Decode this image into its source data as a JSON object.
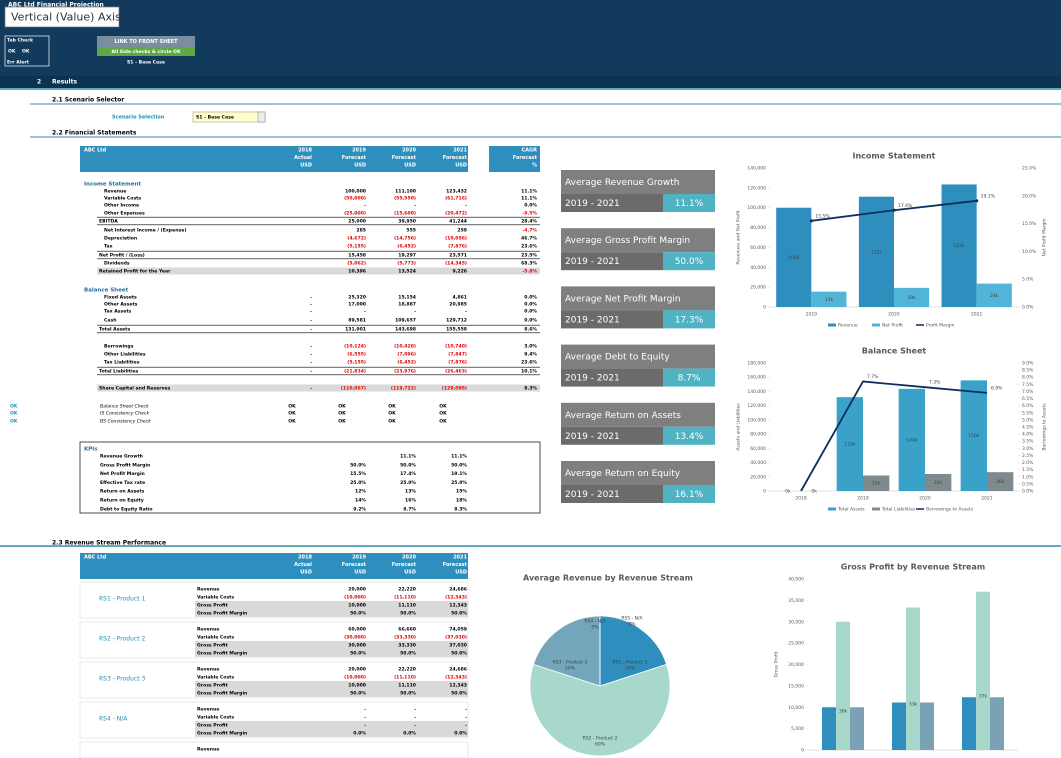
{
  "tooltip": "Vertical (Value) Axis",
  "header": {
    "title": "ABC Ltd Financial Projection",
    "tab_check": "Tab Check",
    "checks": [
      "OK",
      "OK"
    ],
    "err_alert": "Err Alert",
    "link_button": "LINK TO FRONT SHEET",
    "check_note": "All Side checks & circle OK",
    "scenario": "S1 - Base Case"
  },
  "sections": {
    "results_number": "2",
    "results": "Results",
    "scenario_selector": "2.1  Scenario Selector",
    "financial_statements": "2.2  Financial Statements",
    "revenue_streams": "2.3  Revenue Stream Performance"
  },
  "scenario_selection": {
    "label": "Scenario Selection",
    "value": "S1 - Base Case"
  },
  "fin_table": {
    "header": {
      "company": "ABC Ltd",
      "years": [
        {
          "year": "2018",
          "status": "Actual",
          "unit": "USD"
        },
        {
          "year": "2019",
          "status": "Forecast",
          "unit": "USD"
        },
        {
          "year": "2020",
          "status": "Forecast",
          "unit": "USD"
        },
        {
          "year": "2021",
          "status": "Forecast",
          "unit": "USD"
        }
      ],
      "cagr": {
        "name": "CAGR",
        "status": "Forecast",
        "unit": "%"
      }
    },
    "income_statement": {
      "title": "Income Statement",
      "rows": [
        [
          "Revenue",
          "100,000",
          "111,100",
          "123,432",
          "11.1%"
        ],
        [
          "Variable Costs",
          "(50,000)",
          "(55,550)",
          "(61,716)",
          "11.1%"
        ],
        [
          "Other Income",
          "-",
          "-",
          "-",
          "0.0%"
        ],
        [
          "Other Expenses",
          "(25,000)",
          "(15,600)",
          "(20,472)",
          "-9.5%"
        ],
        [
          "EBITDA",
          "25,000",
          "39,950",
          "41,244",
          "28.4%"
        ],
        [
          "Net Interest Income / (Expense)",
          "285",
          "555",
          "259",
          "-4.7%"
        ],
        [
          "Depreciation",
          "(4,672)",
          "(14,756)",
          "(10,056)",
          "46.7%"
        ],
        [
          "Tax",
          "(5,155)",
          "(6,452)",
          "(7,876)",
          "23.6%"
        ],
        [
          "Net Profit / (Loss)",
          "15,458",
          "19,297",
          "23,571",
          "23.5%"
        ],
        [
          "Dividends",
          "(5,062)",
          "(5,773)",
          "(14,345)",
          "68.3%"
        ],
        [
          "Retained Profit for the Year",
          "10,396",
          "13,524",
          "9,226",
          "-5.8%"
        ]
      ]
    },
    "balance_sheet": {
      "title": "Balance Sheet",
      "rows": [
        [
          "Fixed Assets",
          "-",
          "25,320",
          "15,154",
          "4,861",
          "0.0%"
        ],
        [
          "Other Assets",
          "-",
          "17,000",
          "18,887",
          "20,985",
          "0.0%"
        ],
        [
          "Tax Assets",
          "-",
          "-",
          "-",
          "-",
          "0.0%"
        ],
        [
          "Cash",
          "-",
          "89,581",
          "109,657",
          "129,712",
          "0.0%"
        ],
        [
          "Total Assets",
          "-",
          "131,901",
          "143,698",
          "155,558",
          "8.6%"
        ],
        [
          "Borrowings",
          "-",
          "(10,124)",
          "(10,428)",
          "(10,740)",
          "3.0%"
        ],
        [
          "Other Liabilities",
          "-",
          "(6,555)",
          "(7,096)",
          "(7,847)",
          "9.4%"
        ],
        [
          "Tax Liabilities",
          "-",
          "(5,155)",
          "(6,452)",
          "(7,876)",
          "23.6%"
        ],
        [
          "Total Liabilities",
          "-",
          "(21,834)",
          "(23,976)",
          "(26,463)",
          "10.1%"
        ],
        [
          "Share Capital and Reserves",
          "-",
          "(110,067)",
          "(119,722)",
          "(129,095)",
          "8.3%"
        ]
      ]
    },
    "checks": [
      {
        "flag": "OK",
        "label": "Balance Sheet Check",
        "values": [
          "OK",
          "OK",
          "OK",
          "OK"
        ]
      },
      {
        "flag": "OK",
        "label": "IS Consistency Check",
        "values": [
          "OK",
          "OK",
          "OK",
          "OK"
        ]
      },
      {
        "flag": "OK",
        "label": "BS Consistency Check",
        "values": [
          "OK",
          "OK",
          "OK",
          "OK"
        ]
      }
    ],
    "kpis": {
      "title": "KPIs",
      "rows": [
        [
          "Revenue Growth",
          "11.1%",
          "11.1%"
        ],
        [
          "Gross Profit Margin",
          "50.0%",
          "50.0%",
          "50.0%"
        ],
        [
          "Net Profit Margin",
          "15.5%",
          "17.4%",
          "19.1%"
        ],
        [
          "Effective Tax rate",
          "25.0%",
          "25.0%",
          "25.0%"
        ],
        [
          "Return on Assets",
          "12%",
          "13%",
          "15%"
        ],
        [
          "Return on Equity",
          "14%",
          "16%",
          "18%"
        ],
        [
          "Debt to Equity Ratio",
          "9.2%",
          "8.7%",
          "8.3%"
        ]
      ]
    }
  },
  "kpi_cards": [
    {
      "title": "Average Revenue Growth",
      "period": "2019 - 2021",
      "value": "11.1%"
    },
    {
      "title": "Average Gross Profit Margin",
      "period": "2019 - 2021",
      "value": "50.0%"
    },
    {
      "title": "Average Net Profit Margin",
      "period": "2019 - 2021",
      "value": "17.3%"
    },
    {
      "title": "Average Debt to Equity",
      "period": "2019 - 2021",
      "value": "8.7%"
    },
    {
      "title": "Average Return on Assets",
      "period": "2019 - 2021",
      "value": "13.4%"
    },
    {
      "title": "Average Return on Equity",
      "period": "2019 - 2021",
      "value": "16.1%"
    }
  ],
  "rev_table": {
    "header": {
      "company": "ABC Ltd",
      "years": [
        {
          "year": "2018",
          "status": "Actual",
          "unit": "USD"
        },
        {
          "year": "2019",
          "status": "Forecast",
          "unit": "USD"
        },
        {
          "year": "2020",
          "status": "Forecast",
          "unit": "USD"
        },
        {
          "year": "2021",
          "status": "Forecast",
          "unit": "USD"
        }
      ]
    },
    "groups": [
      {
        "name": "RS1 - Product 1",
        "rows": [
          [
            "Revenue",
            "20,000",
            "22,220",
            "24,686"
          ],
          [
            "Variable Costs",
            "(10,000)",
            "(11,110)",
            "(12,343)"
          ],
          [
            "Gross Profit",
            "10,000",
            "11,110",
            "12,343"
          ],
          [
            "Gross Profit Margin",
            "50.0%",
            "50.0%",
            "50.0%"
          ]
        ]
      },
      {
        "name": "RS2 - Product 2",
        "rows": [
          [
            "Revenue",
            "60,000",
            "66,660",
            "74,059"
          ],
          [
            "Variable Costs",
            "(30,000)",
            "(33,330)",
            "(37,030)"
          ],
          [
            "Gross Profit",
            "30,000",
            "33,330",
            "37,030"
          ],
          [
            "Gross Profit Margin",
            "50.0%",
            "50.0%",
            "50.0%"
          ]
        ]
      },
      {
        "name": "RS3 - Product 3",
        "rows": [
          [
            "Revenue",
            "20,000",
            "22,220",
            "24,686"
          ],
          [
            "Variable Costs",
            "(10,000)",
            "(11,110)",
            "(12,343)"
          ],
          [
            "Gross Profit",
            "10,000",
            "11,110",
            "12,343"
          ],
          [
            "Gross Profit Margin",
            "50.0%",
            "50.0%",
            "50.0%"
          ]
        ]
      },
      {
        "name": "RS4 - N/A",
        "rows": [
          [
            "Revenue",
            "-",
            "-",
            "-"
          ],
          [
            "Variable Costs",
            "-",
            "-",
            "-"
          ],
          [
            "Gross Profit",
            "-",
            "-",
            "-"
          ],
          [
            "Gross Profit Margin",
            "0.0%",
            "0.0%",
            "0.0%"
          ]
        ]
      },
      {
        "rows": [
          [
            "Revenue"
          ]
        ]
      }
    ]
  },
  "chart_data": [
    {
      "type": "bar",
      "title": "Income Statement",
      "categories": [
        "2019",
        "2020",
        "2021"
      ],
      "series": [
        {
          "name": "Revenue",
          "color": "#2e8fbf",
          "values": [
            100000,
            111100,
            123432
          ],
          "value_labels": [
            "100k",
            "111k",
            "123k"
          ]
        },
        {
          "name": "Net Profit",
          "color": "#52b5d8",
          "values": [
            15458,
            19297,
            23571
          ],
          "value_labels": [
            "15k",
            "19k",
            "24k"
          ]
        },
        {
          "name": "Profit Margin",
          "type": "line",
          "axis": "y2",
          "color": "#0d2f5e",
          "values": [
            15.5,
            17.4,
            19.1
          ],
          "value_labels": [
            "15.5%",
            "17.4%",
            "19.1%"
          ]
        }
      ],
      "ylim": [
        0,
        140000
      ],
      "yticks": [
        0,
        {
          "value": 20000,
          "label": "20,000"
        },
        {
          "value": 40000,
          "label": "40,000"
        },
        {
          "value": 60000,
          "label": "60,000"
        },
        {
          "value": 80000,
          "label": "80,000"
        },
        {
          "value": 100000,
          "label": "100,000"
        },
        {
          "value": 120000,
          "label": "120,000"
        },
        {
          "value": 140000,
          "label": "140,000"
        }
      ],
      "y2lim": [
        0,
        25
      ],
      "y2ticks": [
        {
          "value": 0,
          "label": "0.0%"
        },
        {
          "value": 5,
          "label": "5.0%"
        },
        {
          "value": 10,
          "label": "10.0%"
        },
        {
          "value": 15,
          "label": "15.0%"
        },
        {
          "value": 20,
          "label": "20.0%"
        },
        {
          "value": 25,
          "label": "25.0%"
        }
      ],
      "ylabel": "Revenues and Net Profit",
      "y2label": "Net Profit Margin",
      "legend": "bottom"
    },
    {
      "type": "bar",
      "title": "Balance Sheet",
      "categories": [
        "2018",
        "2019",
        "2020",
        "2021"
      ],
      "series": [
        {
          "name": "Total Assets",
          "color": "#3aa2c8",
          "values": [
            0,
            131901,
            143698,
            155558
          ],
          "value_labels": [
            "0k",
            "132k",
            "144k",
            "156k"
          ]
        },
        {
          "name": "Total Liabilities",
          "color": "#7f8a8f",
          "values": [
            0,
            21834,
            23976,
            26463
          ],
          "value_labels": [
            "0k",
            "22k",
            "24k",
            "26k"
          ]
        },
        {
          "name": "Borrowings to Assets",
          "type": "line",
          "axis": "y2",
          "color": "#0d2f5e",
          "values": [
            0,
            7.7,
            7.3,
            6.9
          ],
          "value_labels": [
            null,
            "7.7%",
            "7.3%",
            "6.9%"
          ]
        }
      ],
      "ylim": [
        0,
        180000
      ],
      "yticks": [
        0,
        {
          "value": 20000,
          "label": "20,000"
        },
        {
          "value": 40000,
          "label": "40,000"
        },
        {
          "value": 60000,
          "label": "60,000"
        },
        {
          "value": 80000,
          "label": "80,000"
        },
        {
          "value": 100000,
          "label": "100,000"
        },
        {
          "value": 120000,
          "label": "120,000"
        },
        {
          "value": 140000,
          "label": "140,000"
        },
        {
          "value": 160000,
          "label": "160,000"
        },
        {
          "value": 180000,
          "label": "180,000"
        }
      ],
      "y2lim": [
        0,
        9
      ],
      "y2ticks": [
        {
          "value": 0,
          "label": "0.0%"
        },
        {
          "value": 0.5,
          "label": "0.5%"
        },
        {
          "value": 1,
          "label": "1.0%"
        },
        {
          "value": 1.5,
          "label": "1.5%"
        },
        {
          "value": 2,
          "label": "2.0%"
        },
        {
          "value": 2.5,
          "label": "2.5%"
        },
        {
          "value": 3,
          "label": "3.0%"
        },
        {
          "value": 3.5,
          "label": "3.5%"
        },
        {
          "value": 4,
          "label": "4.0%"
        },
        {
          "value": 4.5,
          "label": "4.5%"
        },
        {
          "value": 5,
          "label": "5.0%"
        },
        {
          "value": 5.5,
          "label": "5.5%"
        },
        {
          "value": 6,
          "label": "6.0%"
        },
        {
          "value": 6.5,
          "label": "6.5%"
        },
        {
          "value": 7,
          "label": "7.0%"
        },
        {
          "value": 7.5,
          "label": "7.5%"
        },
        {
          "value": 8,
          "label": "8.0%"
        },
        {
          "value": 8.5,
          "label": "8.5%"
        },
        {
          "value": 9,
          "label": "9.0%"
        }
      ],
      "ylabel": "Assets and Liabilities",
      "y2label": "Borrowings to Assets",
      "legend": "bottom"
    },
    {
      "type": "pie",
      "title": "Average Revenue by Revenue Stream",
      "categories": [
        "RS1 - Product 1",
        "RS2 - Product 2",
        "RS3 - Product 3",
        "RS4 - N/A",
        "RS5 - N/A"
      ],
      "values": [
        20,
        60,
        20,
        0,
        0
      ],
      "value_labels": [
        "20%",
        "60%",
        "20%",
        "0%",
        "0%"
      ],
      "colors": [
        "#2e8fbf",
        "#a8d8cc",
        "#73a5bb",
        "#5b9bd5",
        "#bfbfbf"
      ]
    },
    {
      "type": "bar",
      "title": "Gross Profit by Revenue Stream",
      "series": [
        {
          "color": "#2e8fbf",
          "values": [
            10000,
            11110,
            12343
          ]
        },
        {
          "color": "#a8d8cc",
          "values": [
            30000,
            33330,
            37030
          ],
          "value_labels": [
            "30k",
            "33k",
            "37k"
          ]
        },
        {
          "color": "#7ba1b5",
          "values": [
            10000,
            11110,
            12343
          ]
        }
      ],
      "ylim": [
        0,
        40000
      ],
      "yticks": [
        0,
        {
          "value": 5000,
          "label": "5,000"
        },
        {
          "value": 10000,
          "label": "10,000"
        },
        {
          "value": 15000,
          "label": "15,000"
        },
        {
          "value": 20000,
          "label": "20,000"
        },
        {
          "value": 25000,
          "label": "25,000"
        },
        {
          "value": 30000,
          "label": "30,000"
        },
        {
          "value": 35000,
          "label": "35,000"
        },
        {
          "value": 40000,
          "label": "40,000"
        }
      ],
      "ylabel": "Gross Profit"
    }
  ]
}
